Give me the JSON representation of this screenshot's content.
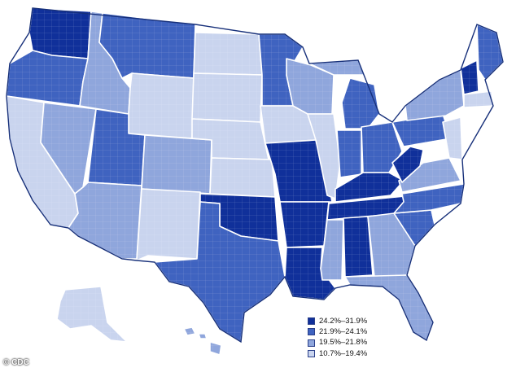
{
  "colors": {
    "class_1": "#10309a",
    "class_2": "#3f63c0",
    "class_3": "#8fa6dc",
    "class_4": "#c9d4ee",
    "outline": "#17307a"
  },
  "legend": {
    "items": [
      {
        "label": "24.2%–31.9%",
        "color": "#10309a"
      },
      {
        "label": "21.9%–24.1%",
        "color": "#3f63c0"
      },
      {
        "label": "19.5%–21.8%",
        "color": "#8fa6dc"
      },
      {
        "label": "10.7%–19.4%",
        "color": "#c9d4ee"
      }
    ]
  },
  "credit": "© CDC"
}
